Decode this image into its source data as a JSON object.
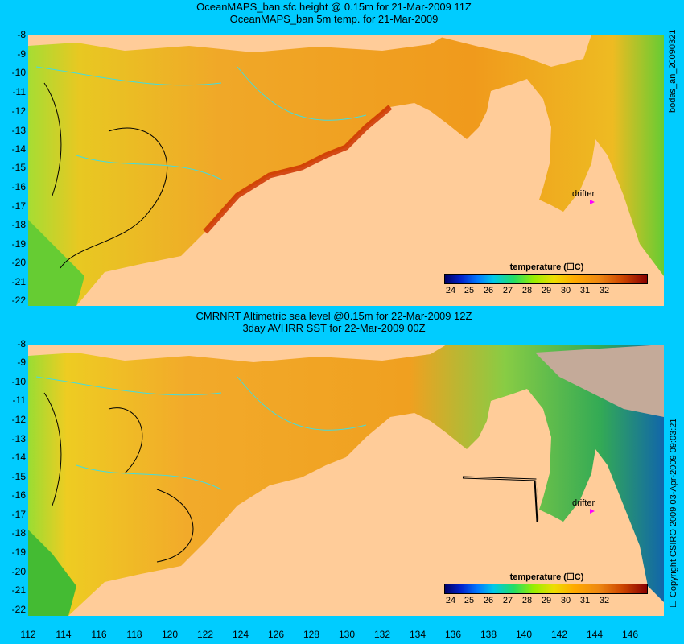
{
  "panels": [
    {
      "title_line1": "OceanMAPS_ban sfc height @ 0.15m for 21-Mar-2009 11Z",
      "title_line2": "OceanMAPS_ban 5m temp. for 21-Mar-2009",
      "side_label": "bodas_an_20090321",
      "drifter_label": "drifter",
      "colorbar": {
        "title": "temperature (☐C)",
        "ticks": [
          "24",
          "25",
          "26",
          "27",
          "28",
          "29",
          "30",
          "31",
          "32"
        ]
      }
    },
    {
      "title_line1": "CMRNRT Altimetric sea level  @0.15m  for 22-Mar-2009 12Z",
      "title_line2": "3day AVHRR SST for 22-Mar-2009 00Z",
      "side_label": "☐ Copyright CSIRO 2009   03-Apr-2009 09:03:21",
      "drifter_label": "drifter",
      "colorbar": {
        "title": "temperature (☐C)",
        "ticks": [
          "24",
          "25",
          "26",
          "27",
          "28",
          "29",
          "30",
          "31",
          "32"
        ]
      }
    }
  ],
  "y_axis_labels": [
    "-8",
    "-9",
    "-10",
    "-11",
    "-12",
    "-13",
    "-14",
    "-15",
    "-16",
    "-17",
    "-18",
    "-19",
    "-20",
    "-21",
    "-22"
  ],
  "x_axis_labels": [
    "112",
    "114",
    "116",
    "118",
    "120",
    "122",
    "124",
    "126",
    "128",
    "130",
    "132",
    "134",
    "136",
    "138",
    "140",
    "142",
    "144",
    "146"
  ],
  "colors": {
    "background": "#00ccff",
    "land": "#ffcc99",
    "warm_water": "#ee9922",
    "hot_water": "#cc3300",
    "cool_water": "#33cc33",
    "contour": "#44dddd",
    "drifter": "#ff00ff"
  }
}
